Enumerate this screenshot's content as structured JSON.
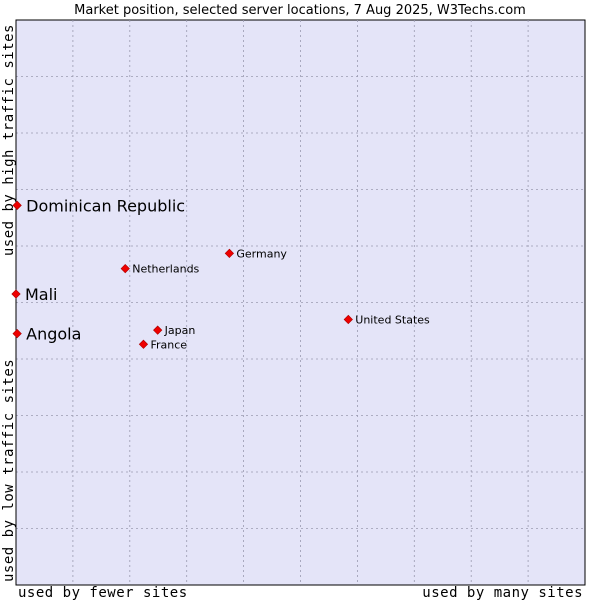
{
  "chart_data": {
    "type": "scatter",
    "title": "Market position, selected server locations, 7 Aug 2025, W3Techs.com",
    "xlabel_left": "used by fewer sites",
    "xlabel_right": "used by many sites",
    "ylabel_top": "used by high traffic sites",
    "ylabel_bottom": "used by low traffic sites",
    "xlim": [
      0,
      100
    ],
    "ylim": [
      0,
      100
    ],
    "grid": true,
    "points": [
      {
        "name": "Dominican Republic",
        "x": 0.2,
        "y": 67.2,
        "emphasis": true
      },
      {
        "name": "Mali",
        "x": 0.0,
        "y": 51.5,
        "emphasis": true
      },
      {
        "name": "Angola",
        "x": 0.2,
        "y": 44.5,
        "emphasis": true
      },
      {
        "name": "Germany",
        "x": 37.5,
        "y": 58.7,
        "emphasis": false
      },
      {
        "name": "Netherlands",
        "x": 19.2,
        "y": 56.0,
        "emphasis": false
      },
      {
        "name": "United States",
        "x": 58.4,
        "y": 47.0,
        "emphasis": false
      },
      {
        "name": "Japan",
        "x": 24.9,
        "y": 45.1,
        "emphasis": false
      },
      {
        "name": "France",
        "x": 22.4,
        "y": 42.6,
        "emphasis": false
      }
    ]
  },
  "colors": {
    "plot_background": "#e4e4f8",
    "grid": "#9a9ab0",
    "point": "#ee0000",
    "axis": "#000000"
  }
}
